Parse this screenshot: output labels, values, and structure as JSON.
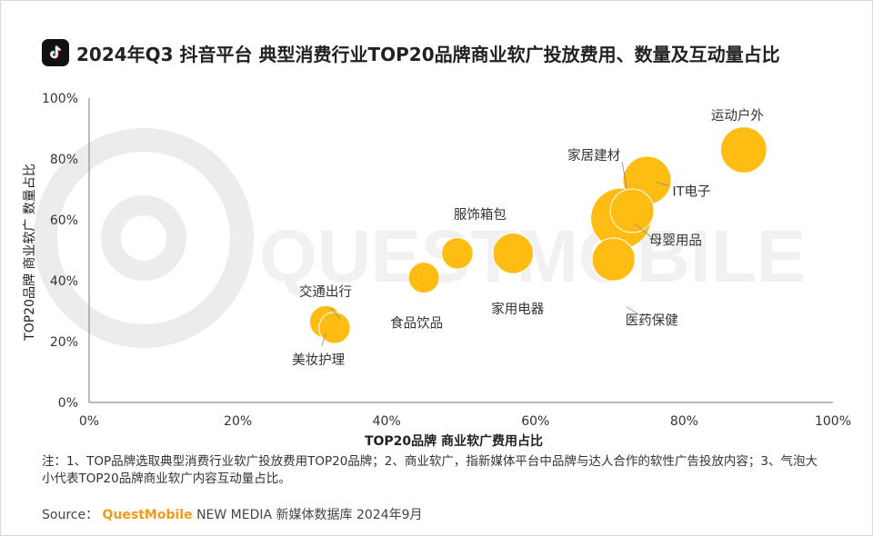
{
  "header": {
    "title": "2024年Q3 抖音平台 典型消费行业TOP20品牌商业软广投放费用、数量及互动量占比",
    "logo_icon": "tiktok-logo-icon"
  },
  "chart_data": {
    "type": "scatter",
    "bubble": true,
    "title": "2024年Q3 抖音平台 典型消费行业TOP20品牌商业软广投放费用、数量及互动量占比",
    "xlabel": "TOP20品牌 商业软广费用占比",
    "ylabel": "TOP20品牌 商业软广 数量占比",
    "xlim": [
      0,
      100
    ],
    "ylim": [
      0,
      100
    ],
    "x_ticks": [
      "0%",
      "20%",
      "40%",
      "60%",
      "80%",
      "100%"
    ],
    "y_ticks": [
      "0%",
      "20%",
      "40%",
      "60%",
      "80%",
      "100%"
    ],
    "grid": false,
    "bubble_color": "#FFBD14",
    "points": [
      {
        "label": "美妆护理",
        "x": 31.8,
        "y": 26.5,
        "size": 3.3
      },
      {
        "label": "交通出行",
        "x": 33.0,
        "y": 24.5,
        "size": 3.1
      },
      {
        "label": "食品饮品",
        "x": 45.0,
        "y": 41.0,
        "size": 3.0
      },
      {
        "label": "服饰箱包",
        "x": 49.5,
        "y": 49.0,
        "size": 3.1
      },
      {
        "label": "家用电器",
        "x": 57.0,
        "y": 49.0,
        "size": 5.2
      },
      {
        "label": "医药保健",
        "x": 70.5,
        "y": 47.0,
        "size": 5.8
      },
      {
        "label": "母婴用品",
        "x": 71.5,
        "y": 60.5,
        "size": 11.5
      },
      {
        "label": "家居建材",
        "x": 73.0,
        "y": 63.0,
        "size": 6.0
      },
      {
        "label": "IT电子",
        "x": 75.0,
        "y": 73.0,
        "size": 7.3
      },
      {
        "label": "运动户外",
        "x": 88.0,
        "y": 83.0,
        "size": 6.7
      }
    ]
  },
  "notes": "注：1、TOP品牌选取典型消费行业软广投放费用TOP20品牌；2、商业软广，指新媒体平台中品牌与达人合作的软性广告投放内容；3、气泡大小代表TOP20品牌商业软广内容互动量占比。",
  "source": {
    "prefix": "Source：",
    "brand": "QuestMobile",
    "rest": "NEW MEDIA 新媒体数据库 2024年9月"
  },
  "watermark": {
    "text": "QUESTMOBILE",
    "icon": "questmobile-watermark-icon"
  }
}
